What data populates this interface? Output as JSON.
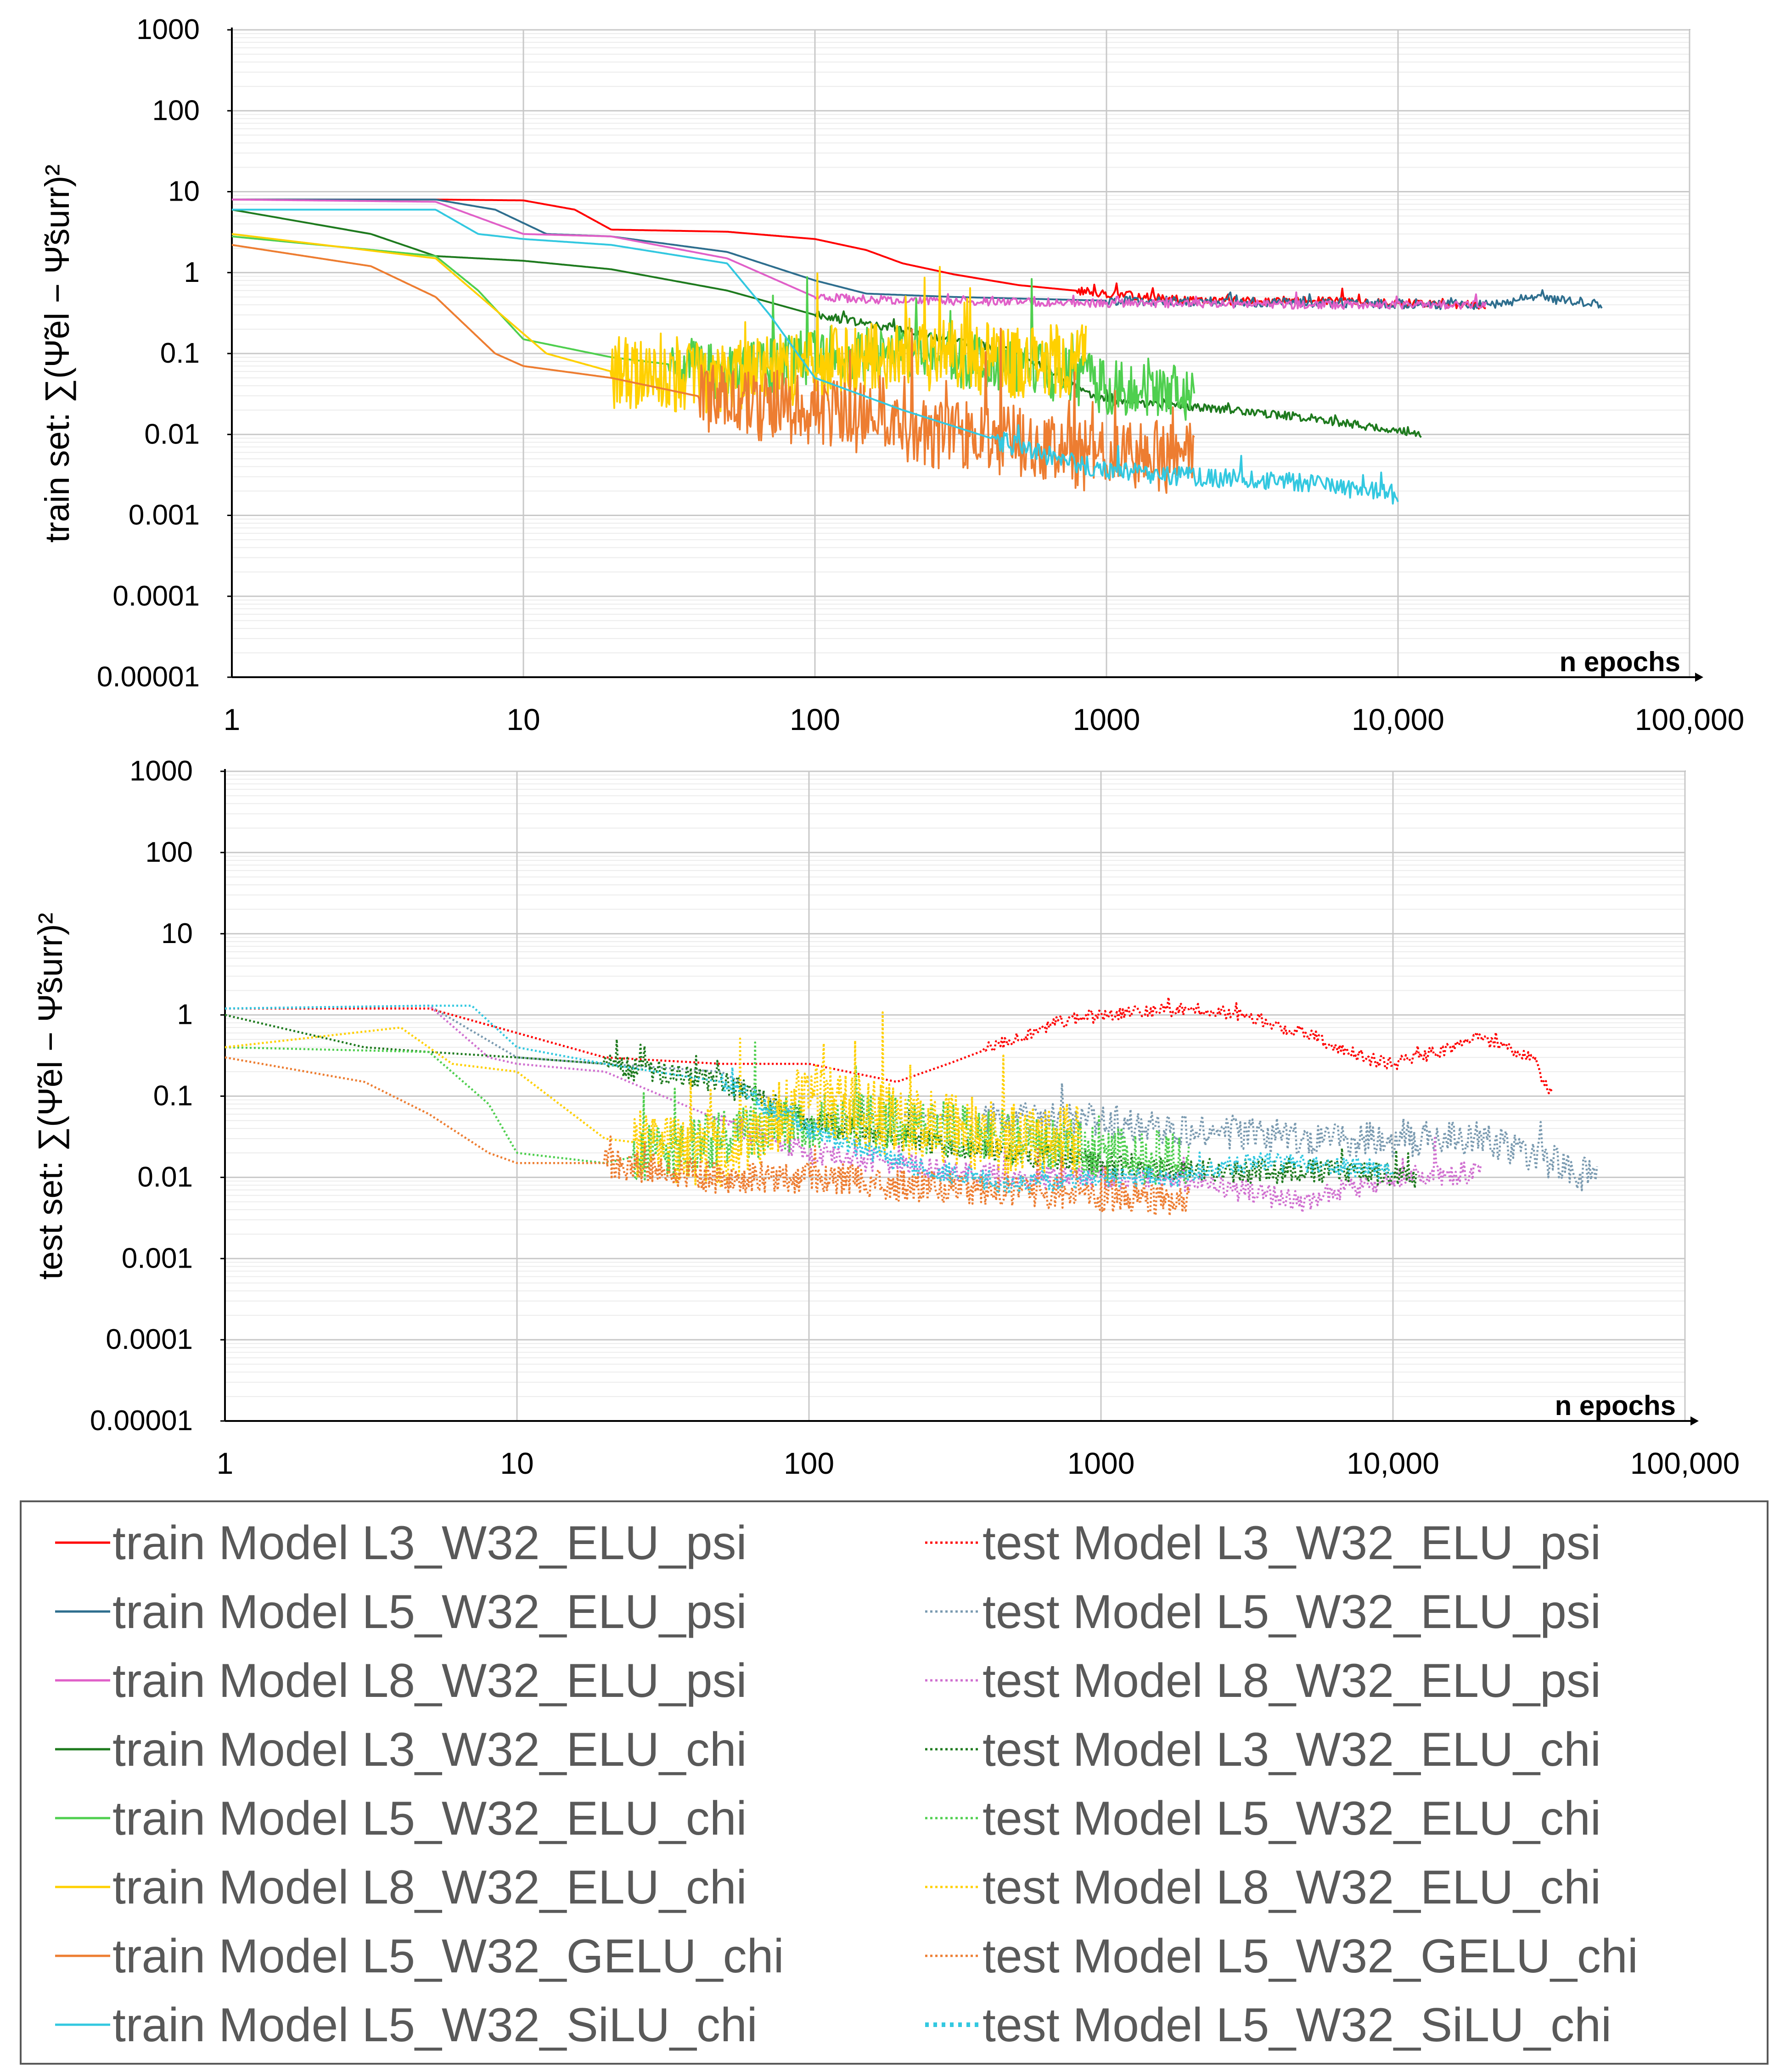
{
  "chart_data": [
    {
      "type": "line",
      "panel": "train",
      "ylabel": "train set: ∑(Ψ̃el − Ψ̃surr)²",
      "xlabel": "n epochs",
      "xscale": "log",
      "yscale": "log",
      "xlim": [
        1,
        100000
      ],
      "ylim": [
        1e-05,
        1000
      ],
      "grid": true,
      "xticks": [
        "1",
        "10",
        "100",
        "1000",
        "10,000",
        "100,000"
      ],
      "yticks": [
        "0.00001",
        "0.0001",
        "0.001",
        "0.01",
        "0.1",
        "1",
        "10",
        "100",
        "1000"
      ],
      "series": [
        {
          "name": "train Model L3_W32_ELU_psi",
          "color": "#ff0000",
          "style": "solid",
          "x": [
            1,
            5,
            10,
            15,
            20,
            50,
            100,
            150,
            200,
            300,
            500,
            1000,
            2000,
            5000,
            10000,
            20000
          ],
          "y": [
            8,
            8,
            7.8,
            6,
            3.4,
            3.2,
            2.6,
            1.9,
            1.3,
            0.95,
            0.7,
            0.55,
            0.45,
            0.45,
            0.42,
            0.4
          ]
        },
        {
          "name": "train Model L5_W32_ELU_psi",
          "color": "#2e6e8e",
          "style": "solid",
          "x": [
            1,
            5,
            8,
            12,
            20,
            50,
            100,
            150,
            300,
            1000,
            5000,
            20000,
            30000,
            50000
          ],
          "y": [
            8,
            8,
            6,
            3,
            2.8,
            1.8,
            0.8,
            0.55,
            0.5,
            0.45,
            0.42,
            0.4,
            0.5,
            0.4
          ]
        },
        {
          "name": "train Model L8_W32_ELU_psi",
          "color": "#e060c8",
          "style": "solid",
          "x": [
            1,
            5,
            10,
            20,
            50,
            100,
            200,
            1000,
            5000,
            20000
          ],
          "y": [
            8,
            7.5,
            3,
            2.8,
            1.5,
            0.5,
            0.45,
            0.42,
            0.4,
            0.4
          ]
        },
        {
          "name": "train Model L3_W32_ELU_chi",
          "color": "#1e7a1e",
          "style": "solid",
          "x": [
            1,
            3,
            5,
            10,
            20,
            50,
            100,
            200,
            500,
            1000,
            2000,
            5000,
            12000
          ],
          "y": [
            6,
            3,
            1.6,
            1.4,
            1.1,
            0.6,
            0.3,
            0.2,
            0.1,
            0.025,
            0.022,
            0.016,
            0.01
          ]
        },
        {
          "name": "train Model L5_W32_ELU_chi",
          "color": "#4fcf4f",
          "style": "solid",
          "x": [
            1,
            5,
            7,
            10,
            20,
            50,
            100,
            200,
            500,
            1000,
            2000
          ],
          "y": [
            2.8,
            1.6,
            0.6,
            0.15,
            0.09,
            0.06,
            0.09,
            0.1,
            0.07,
            0.04,
            0.03
          ]
        },
        {
          "name": "train Model L8_W32_ELU_chi",
          "color": "#ffd000",
          "style": "solid",
          "x": [
            1,
            5,
            8,
            12,
            20,
            50,
            100,
            200,
            500,
            850
          ],
          "y": [
            3,
            1.5,
            0.35,
            0.1,
            0.06,
            0.05,
            0.07,
            0.1,
            0.08,
            0.08
          ]
        },
        {
          "name": "train Model L5_W32_GELU_chi",
          "color": "#ed7d31",
          "style": "solid",
          "x": [
            1,
            3,
            5,
            8,
            10,
            20,
            50,
            100,
            200,
            500,
            1000,
            2000
          ],
          "y": [
            2.2,
            1.2,
            0.5,
            0.1,
            0.07,
            0.05,
            0.025,
            0.02,
            0.012,
            0.008,
            0.005,
            0.005
          ]
        },
        {
          "name": "train Model L5_W32_SiLU_chi",
          "color": "#33c8e0",
          "style": "solid",
          "x": [
            1,
            5,
            7,
            10,
            20,
            50,
            70,
            100,
            200,
            500,
            1000,
            2000,
            5000,
            10000
          ],
          "y": [
            6,
            6,
            3,
            2.6,
            2.2,
            1.3,
            0.3,
            0.05,
            0.02,
            0.007,
            0.0035,
            0.003,
            0.0025,
            0.0018
          ]
        }
      ]
    },
    {
      "type": "line",
      "panel": "test",
      "ylabel": "test set: ∑(Ψ̃el − Ψ̃surr)²",
      "xlabel": "n epochs",
      "xscale": "log",
      "yscale": "log",
      "xlim": [
        1,
        100000
      ],
      "ylim": [
        1e-05,
        1000
      ],
      "grid": true,
      "xticks": [
        "1",
        "10",
        "100",
        "1000",
        "10,000",
        "100,000"
      ],
      "yticks": [
        "0.00001",
        "0.0001",
        "0.001",
        "0.01",
        "0.1",
        "1",
        "10",
        "100",
        "1000"
      ],
      "series": [
        {
          "name": "test Model L3_W32_ELU_psi",
          "color": "#ff0000",
          "style": "dotted",
          "x": [
            1,
            5,
            10,
            20,
            50,
            100,
            200,
            300,
            500,
            700,
            1000,
            2000,
            3000,
            5000,
            8000,
            10000,
            20000,
            30000,
            35000
          ],
          "y": [
            1.2,
            1.2,
            0.6,
            0.3,
            0.25,
            0.25,
            0.15,
            0.25,
            0.5,
            0.8,
            1.0,
            1.2,
            1.0,
            0.6,
            0.3,
            0.25,
            0.5,
            0.3,
            0.1
          ]
        },
        {
          "name": "test Model L5_W32_ELU_psi",
          "color": "#7a9ab0",
          "style": "dotted",
          "x": [
            1,
            5,
            10,
            20,
            50,
            100,
            200,
            500,
            1000,
            2000,
            5000,
            10000,
            20000,
            30000,
            50000
          ],
          "y": [
            1.2,
            1.3,
            0.3,
            0.25,
            0.2,
            0.05,
            0.06,
            0.05,
            0.05,
            0.04,
            0.03,
            0.03,
            0.03,
            0.02,
            0.009
          ]
        },
        {
          "name": "test Model L8_W32_ELU_psi",
          "color": "#d070d0",
          "style": "dotted",
          "x": [
            1,
            5,
            8,
            10,
            20,
            50,
            100,
            500,
            1000,
            2000,
            5000,
            10000,
            20000
          ],
          "y": [
            1.2,
            1.3,
            0.3,
            0.25,
            0.2,
            0.05,
            0.02,
            0.01,
            0.01,
            0.009,
            0.005,
            0.01,
            0.012
          ]
        },
        {
          "name": "test Model L3_W32_ELU_chi",
          "color": "#1e7a1e",
          "style": "dotted",
          "x": [
            1,
            3,
            5,
            10,
            20,
            50,
            100,
            200,
            500,
            1000,
            2000,
            5000,
            10000,
            12000
          ],
          "y": [
            1.0,
            0.4,
            0.35,
            0.3,
            0.25,
            0.15,
            0.05,
            0.03,
            0.02,
            0.015,
            0.012,
            0.012,
            0.011,
            0.01
          ]
        },
        {
          "name": "test Model L5_W32_ELU_chi",
          "color": "#4fcf4f",
          "style": "dotted",
          "x": [
            1,
            5,
            8,
            10,
            20,
            50,
            100,
            200,
            500,
            1000,
            2000
          ],
          "y": [
            0.4,
            0.35,
            0.08,
            0.02,
            0.015,
            0.03,
            0.05,
            0.05,
            0.03,
            0.02,
            0.015
          ]
        },
        {
          "name": "test Model L8_W32_ELU_chi",
          "color": "#ffd000",
          "style": "dotted",
          "x": [
            1,
            4,
            6,
            10,
            20,
            50,
            100,
            200,
            500,
            850
          ],
          "y": [
            0.4,
            0.7,
            0.25,
            0.2,
            0.03,
            0.02,
            0.1,
            0.05,
            0.03,
            0.03
          ]
        },
        {
          "name": "test Model L5_W32_GELU_chi",
          "color": "#ed7d31",
          "style": "dotted",
          "x": [
            1,
            3,
            5,
            8,
            10,
            20,
            50,
            100,
            200,
            500,
            1000,
            2000
          ],
          "y": [
            0.3,
            0.15,
            0.06,
            0.02,
            0.015,
            0.015,
            0.01,
            0.01,
            0.008,
            0.007,
            0.006,
            0.005
          ]
        },
        {
          "name": "test Model L5_W32_SiLU_chi",
          "color": "#33c8e0",
          "style": "dotted",
          "x": [
            1,
            5,
            7,
            10,
            20,
            50,
            100,
            200,
            500,
            1000,
            2000,
            3000,
            5000,
            10000
          ],
          "y": [
            1.2,
            1.3,
            1.3,
            0.4,
            0.25,
            0.15,
            0.04,
            0.015,
            0.008,
            0.01,
            0.01,
            0.015,
            0.015,
            0.012
          ]
        }
      ]
    }
  ],
  "legend": {
    "placement": "bottom",
    "columns": 2,
    "entries": [
      {
        "label": "train Model L3_W32_ELU_psi",
        "color": "#ff0000",
        "style": "solid"
      },
      {
        "label": "test Model L3_W32_ELU_psi",
        "color": "#ff0000",
        "style": "dotted"
      },
      {
        "label": "train Model L5_W32_ELU_psi",
        "color": "#2e6e8e",
        "style": "solid"
      },
      {
        "label": "test Model L5_W32_ELU_psi",
        "color": "#7a9ab0",
        "style": "dotted"
      },
      {
        "label": "train Model L8_W32_ELU_psi",
        "color": "#e060c8",
        "style": "solid"
      },
      {
        "label": "test Model L8_W32_ELU_psi",
        "color": "#d070d0",
        "style": "dotted"
      },
      {
        "label": "train Model L3_W32_ELU_chi",
        "color": "#1e7a1e",
        "style": "solid"
      },
      {
        "label": "test Model L3_W32_ELU_chi",
        "color": "#1e7a1e",
        "style": "dotted"
      },
      {
        "label": "train Model L5_W32_ELU_chi",
        "color": "#4fcf4f",
        "style": "solid"
      },
      {
        "label": "test Model L5_W32_ELU_chi",
        "color": "#4fcf4f",
        "style": "dotted"
      },
      {
        "label": "train Model L8_W32_ELU_chi",
        "color": "#ffd000",
        "style": "solid"
      },
      {
        "label": "test Model L8_W32_ELU_chi",
        "color": "#ffd000",
        "style": "dotted"
      },
      {
        "label": "train Model L5_W32_GELU_chi",
        "color": "#ed7d31",
        "style": "solid"
      },
      {
        "label": "test Model L5_W32_GELU_chi",
        "color": "#ed7d31",
        "style": "dotted"
      },
      {
        "label": "train Model L5_W32_SiLU_chi",
        "color": "#33c8e0",
        "style": "solid"
      },
      {
        "label": "test Model L5_W32_SiLU_chi",
        "color": "#33c8e0",
        "style": "dotted"
      }
    ]
  }
}
